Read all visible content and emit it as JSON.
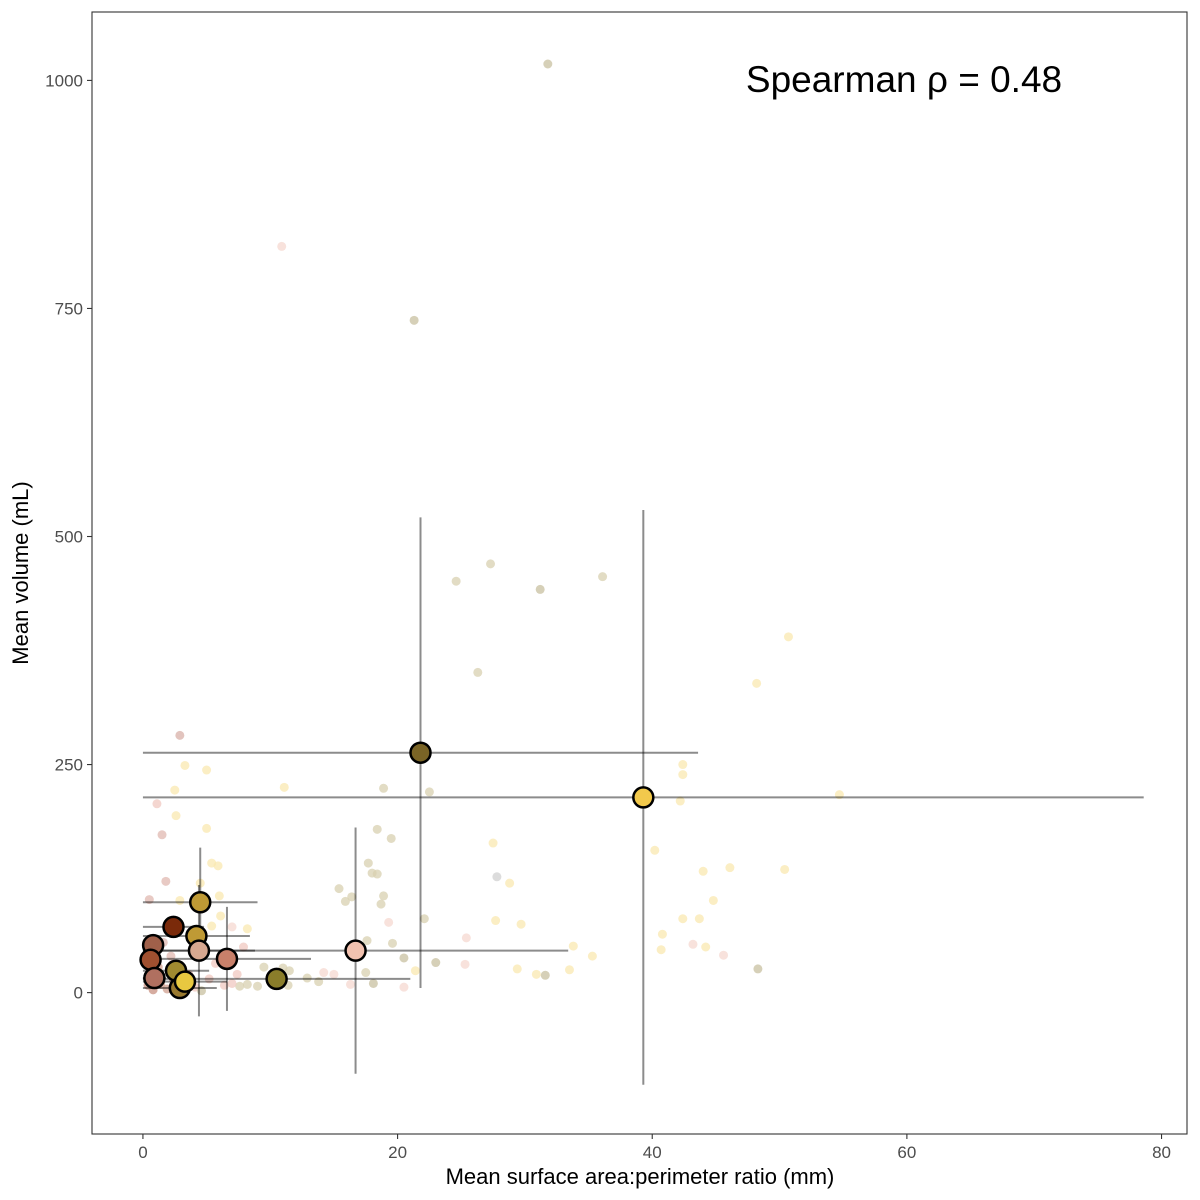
{
  "chart_data": {
    "type": "scatter",
    "title": "",
    "xlabel": "Mean surface area:perimeter ratio (mm)",
    "ylabel": "Mean volume (mL)",
    "annotation": "Spearman ρ = 0.48",
    "xlim": [
      -4,
      82
    ],
    "ylim": [
      -155,
      1075
    ],
    "x_ticks": [
      0,
      20,
      40,
      60,
      80
    ],
    "y_ticks": [
      0,
      250,
      500,
      750,
      1000
    ],
    "grid": false,
    "legend": "none",
    "summary_points": [
      {
        "x": 21.8,
        "y": 263,
        "xerr": 21.8,
        "yerr": 258,
        "color": "#7a6426"
      },
      {
        "x": 39.3,
        "y": 214,
        "xerr": 39.3,
        "yerr": 315,
        "color": "#f2c94c"
      },
      {
        "x": 16.7,
        "y": 46,
        "xerr": 16.7,
        "yerr": 135,
        "color": "#f2c2b0"
      },
      {
        "x": 10.5,
        "y": 15,
        "xerr": 10.5,
        "yerr": 0,
        "color": "#8a7d2a"
      },
      {
        "x": 4.5,
        "y": 99,
        "xerr": 4.5,
        "yerr": 60,
        "color": "#bf9a35"
      },
      {
        "x": 4.2,
        "y": 62,
        "xerr": 4.2,
        "yerr": 0,
        "color": "#bf9a35"
      },
      {
        "x": 4.4,
        "y": 46,
        "xerr": 4.4,
        "yerr": 72,
        "color": "#d8a890"
      },
      {
        "x": 6.6,
        "y": 37,
        "xerr": 6.6,
        "yerr": 57,
        "color": "#c8806a"
      },
      {
        "x": 2.4,
        "y": 72,
        "xerr": 2.4,
        "yerr": 0,
        "color": "#7a2a0a"
      },
      {
        "x": 2.6,
        "y": 24,
        "xerr": 2.6,
        "yerr": 0,
        "color": "#a08a30"
      },
      {
        "x": 0.8,
        "y": 52,
        "xerr": 0.8,
        "yerr": 0,
        "color": "#a0604a"
      },
      {
        "x": 0.6,
        "y": 36,
        "xerr": 0.6,
        "yerr": 0,
        "color": "#a05030"
      },
      {
        "x": 0.9,
        "y": 16,
        "xerr": 0.9,
        "yerr": 0,
        "color": "#b07060"
      },
      {
        "x": 2.9,
        "y": 5,
        "xerr": 2.9,
        "yerr": 0,
        "color": "#9a7a30"
      },
      {
        "x": 3.3,
        "y": 12,
        "xerr": 3.3,
        "yerr": 0,
        "color": "#e8c840"
      }
    ],
    "raw_points": [
      {
        "x": 31.8,
        "y": 1018,
        "color": "#c8c0a0"
      },
      {
        "x": 10.9,
        "y": 818,
        "color": "#f5d8d0"
      },
      {
        "x": 21.3,
        "y": 737,
        "color": "#c8c0a0"
      },
      {
        "x": 27.3,
        "y": 470,
        "color": "#d8d0b0"
      },
      {
        "x": 24.6,
        "y": 451,
        "color": "#d8d0b0"
      },
      {
        "x": 31.2,
        "y": 442,
        "color": "#c8c0a0"
      },
      {
        "x": 36.1,
        "y": 456,
        "color": "#d8d0b0"
      },
      {
        "x": 26.3,
        "y": 351,
        "color": "#d8d0b0"
      },
      {
        "x": 50.7,
        "y": 390,
        "color": "#fae8b0"
      },
      {
        "x": 48.2,
        "y": 339,
        "color": "#fae8b0"
      },
      {
        "x": 42.4,
        "y": 250,
        "color": "#fae8b0"
      },
      {
        "x": 42.4,
        "y": 239,
        "color": "#fae8b0"
      },
      {
        "x": 42.2,
        "y": 210,
        "color": "#fae8b0"
      },
      {
        "x": 54.7,
        "y": 217,
        "color": "#fae8b0"
      },
      {
        "x": 40.2,
        "y": 156,
        "color": "#fae8b0"
      },
      {
        "x": 44.0,
        "y": 133,
        "color": "#fae8b0"
      },
      {
        "x": 46.1,
        "y": 137,
        "color": "#fae8b0"
      },
      {
        "x": 50.4,
        "y": 135,
        "color": "#fae8b0"
      },
      {
        "x": 44.8,
        "y": 101,
        "color": "#fae8b0"
      },
      {
        "x": 42.4,
        "y": 81,
        "color": "#fae8b0"
      },
      {
        "x": 43.7,
        "y": 81,
        "color": "#fae8b0"
      },
      {
        "x": 40.8,
        "y": 64,
        "color": "#fae8b0"
      },
      {
        "x": 40.7,
        "y": 47,
        "color": "#fae8b0"
      },
      {
        "x": 44.2,
        "y": 50,
        "color": "#fae8b0"
      },
      {
        "x": 43.2,
        "y": 53,
        "color": "#f5d8d0"
      },
      {
        "x": 45.6,
        "y": 41,
        "color": "#f5d8d0"
      },
      {
        "x": 48.3,
        "y": 26,
        "color": "#c8c0a0"
      },
      {
        "x": 33.8,
        "y": 51,
        "color": "#fae8b0"
      },
      {
        "x": 35.3,
        "y": 40,
        "color": "#fae8b0"
      },
      {
        "x": 33.5,
        "y": 25,
        "color": "#fae8b0"
      },
      {
        "x": 29.4,
        "y": 26,
        "color": "#fae8b0"
      },
      {
        "x": 31.6,
        "y": 19,
        "color": "#c8c0a0"
      },
      {
        "x": 30.9,
        "y": 20,
        "color": "#fae8b0"
      },
      {
        "x": 27.5,
        "y": 164,
        "color": "#fae8b0"
      },
      {
        "x": 27.8,
        "y": 127,
        "color": "#d0d0d0"
      },
      {
        "x": 28.8,
        "y": 120,
        "color": "#fae8b0"
      },
      {
        "x": 27.7,
        "y": 79,
        "color": "#fae8b0"
      },
      {
        "x": 29.7,
        "y": 75,
        "color": "#fae8b0"
      },
      {
        "x": 25.4,
        "y": 60,
        "color": "#f5d8d0"
      },
      {
        "x": 25.3,
        "y": 31,
        "color": "#f5d8d0"
      },
      {
        "x": 23.0,
        "y": 33,
        "color": "#c8c0a0"
      },
      {
        "x": 22.5,
        "y": 220,
        "color": "#d8d0b0"
      },
      {
        "x": 22.1,
        "y": 81,
        "color": "#d8d0b0"
      },
      {
        "x": 21.4,
        "y": 24,
        "color": "#fae8b0"
      },
      {
        "x": 20.5,
        "y": 38,
        "color": "#c8c0a0"
      },
      {
        "x": 20.5,
        "y": 6,
        "color": "#f5d8d0"
      },
      {
        "x": 18.9,
        "y": 224,
        "color": "#d8d0b0"
      },
      {
        "x": 18.4,
        "y": 179,
        "color": "#d8d0b0"
      },
      {
        "x": 19.5,
        "y": 169,
        "color": "#d8d0b0"
      },
      {
        "x": 17.7,
        "y": 142,
        "color": "#d8d0b0"
      },
      {
        "x": 18.4,
        "y": 130,
        "color": "#d8d0b0"
      },
      {
        "x": 18.0,
        "y": 131,
        "color": "#d8d0b0"
      },
      {
        "x": 18.9,
        "y": 106,
        "color": "#d8d0b0"
      },
      {
        "x": 18.7,
        "y": 97,
        "color": "#d8d0b0"
      },
      {
        "x": 19.3,
        "y": 77,
        "color": "#f5d8d0"
      },
      {
        "x": 15.4,
        "y": 114,
        "color": "#d8d0b0"
      },
      {
        "x": 16.4,
        "y": 105,
        "color": "#d8d0b0"
      },
      {
        "x": 15.9,
        "y": 100,
        "color": "#d8d0b0"
      },
      {
        "x": 17.6,
        "y": 57,
        "color": "#d8d0b0"
      },
      {
        "x": 19.6,
        "y": 54,
        "color": "#d8d0b0"
      },
      {
        "x": 17.5,
        "y": 22,
        "color": "#d8d0b0"
      },
      {
        "x": 18.1,
        "y": 10,
        "color": "#c8c0a0"
      },
      {
        "x": 15.0,
        "y": 20,
        "color": "#f5d8d0"
      },
      {
        "x": 14.2,
        "y": 22,
        "color": "#f5d8d0"
      },
      {
        "x": 13.8,
        "y": 12,
        "color": "#d8d0b0"
      },
      {
        "x": 12.9,
        "y": 16,
        "color": "#d8d0b0"
      },
      {
        "x": 16.3,
        "y": 9,
        "color": "#f5d8d0"
      },
      {
        "x": 11.1,
        "y": 225,
        "color": "#fae8b0"
      },
      {
        "x": 11.0,
        "y": 27,
        "color": "#d8d0b0"
      },
      {
        "x": 11.5,
        "y": 24,
        "color": "#d8d0b0"
      },
      {
        "x": 9.5,
        "y": 28,
        "color": "#d8d0b0"
      },
      {
        "x": 9.0,
        "y": 7,
        "color": "#d8d0b0"
      },
      {
        "x": 11.4,
        "y": 8,
        "color": "#d8d0b0"
      },
      {
        "x": 8.2,
        "y": 9,
        "color": "#d8d0b0"
      },
      {
        "x": 7.6,
        "y": 7,
        "color": "#d8d0b0"
      },
      {
        "x": 2.9,
        "y": 282,
        "color": "#d8b0a8"
      },
      {
        "x": 3.3,
        "y": 249,
        "color": "#fae8b0"
      },
      {
        "x": 5.0,
        "y": 244,
        "color": "#fae8b0"
      },
      {
        "x": 2.5,
        "y": 222,
        "color": "#fae8b0"
      },
      {
        "x": 1.1,
        "y": 207,
        "color": "#f0c8c0"
      },
      {
        "x": 2.6,
        "y": 194,
        "color": "#fae8b0"
      },
      {
        "x": 5.0,
        "y": 180,
        "color": "#fae8b0"
      },
      {
        "x": 1.5,
        "y": 173,
        "color": "#e0b8b0"
      },
      {
        "x": 5.4,
        "y": 142,
        "color": "#fae8b0"
      },
      {
        "x": 5.9,
        "y": 139,
        "color": "#fae8b0"
      },
      {
        "x": 1.8,
        "y": 122,
        "color": "#e0b8b0"
      },
      {
        "x": 4.5,
        "y": 120,
        "color": "#fae8b0"
      },
      {
        "x": 6.0,
        "y": 106,
        "color": "#fae8b0"
      },
      {
        "x": 2.9,
        "y": 101,
        "color": "#fae8b0"
      },
      {
        "x": 0.5,
        "y": 102,
        "color": "#e0b8b0"
      },
      {
        "x": 6.1,
        "y": 84,
        "color": "#fae8b0"
      },
      {
        "x": 5.4,
        "y": 73,
        "color": "#fae8b0"
      },
      {
        "x": 7.0,
        "y": 72,
        "color": "#f5d8d0"
      },
      {
        "x": 8.2,
        "y": 70,
        "color": "#fae8b0"
      },
      {
        "x": 7.9,
        "y": 50,
        "color": "#f0c8c0"
      },
      {
        "x": 1.6,
        "y": 55,
        "color": "#e0b8b0"
      },
      {
        "x": 2.2,
        "y": 40,
        "color": "#e0b8b0"
      },
      {
        "x": 5.7,
        "y": 32,
        "color": "#f0c8c0"
      },
      {
        "x": 7.4,
        "y": 20,
        "color": "#f0c8c0"
      },
      {
        "x": 6.4,
        "y": 8,
        "color": "#f0c8c0"
      },
      {
        "x": 7.0,
        "y": 10,
        "color": "#f0c8c0"
      },
      {
        "x": 5.2,
        "y": 15,
        "color": "#f0c8c0"
      },
      {
        "x": 4.1,
        "y": 6,
        "color": "#f0c8c0"
      },
      {
        "x": 3.6,
        "y": 20,
        "color": "#e0b8b0"
      },
      {
        "x": 1.4,
        "y": 9,
        "color": "#d0a090"
      },
      {
        "x": 1.9,
        "y": 4,
        "color": "#d0a090"
      },
      {
        "x": 0.8,
        "y": 3,
        "color": "#c89080"
      },
      {
        "x": 0.4,
        "y": 8,
        "color": "#c89080"
      },
      {
        "x": 2.4,
        "y": 14,
        "color": "#d0a090"
      },
      {
        "x": 3.2,
        "y": 2,
        "color": "#d0a090"
      },
      {
        "x": 1.2,
        "y": 28,
        "color": "#d0a090"
      },
      {
        "x": 4.6,
        "y": 2,
        "color": "#c8c0a0"
      }
    ]
  }
}
